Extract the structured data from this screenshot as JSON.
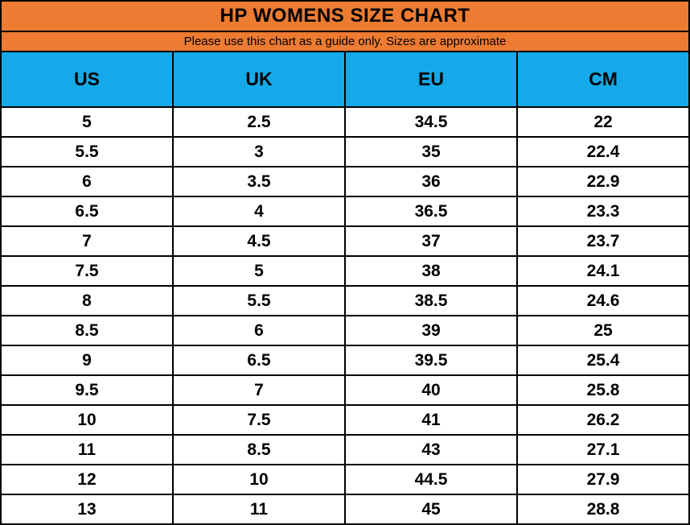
{
  "title": "HP WOMENS SIZE CHART",
  "subtitle": "Please use this chart as a guide only. Sizes are approximate",
  "colors": {
    "accent_orange": "#ED7B31",
    "accent_blue": "#15A9E9",
    "border": "#000000",
    "text": "#000000",
    "row_bg": "#FFFFFF"
  },
  "chart_data": {
    "type": "table",
    "title": "HP WOMENS SIZE CHART",
    "subtitle": "Please use this chart as a guide only. Sizes are approximate",
    "columns": [
      "US",
      "UK",
      "EU",
      "CM"
    ],
    "rows": [
      [
        "5",
        "2.5",
        "34.5",
        "22"
      ],
      [
        "5.5",
        "3",
        "35",
        "22.4"
      ],
      [
        "6",
        "3.5",
        "36",
        "22.9"
      ],
      [
        "6.5",
        "4",
        "36.5",
        "23.3"
      ],
      [
        "7",
        "4.5",
        "37",
        "23.7"
      ],
      [
        "7.5",
        "5",
        "38",
        "24.1"
      ],
      [
        "8",
        "5.5",
        "38.5",
        "24.6"
      ],
      [
        "8.5",
        "6",
        "39",
        "25"
      ],
      [
        "9",
        "6.5",
        "39.5",
        "25.4"
      ],
      [
        "9.5",
        "7",
        "40",
        "25.8"
      ],
      [
        "10",
        "7.5",
        "41",
        "26.2"
      ],
      [
        "11",
        "8.5",
        "43",
        "27.1"
      ],
      [
        "12",
        "10",
        "44.5",
        "27.9"
      ],
      [
        "13",
        "11",
        "45",
        "28.8"
      ]
    ],
    "layout": {
      "title_row_bg": "#ED7B31",
      "header_row_bg": "#15A9E9",
      "gridlines": true,
      "grid_color": "#000000"
    }
  }
}
